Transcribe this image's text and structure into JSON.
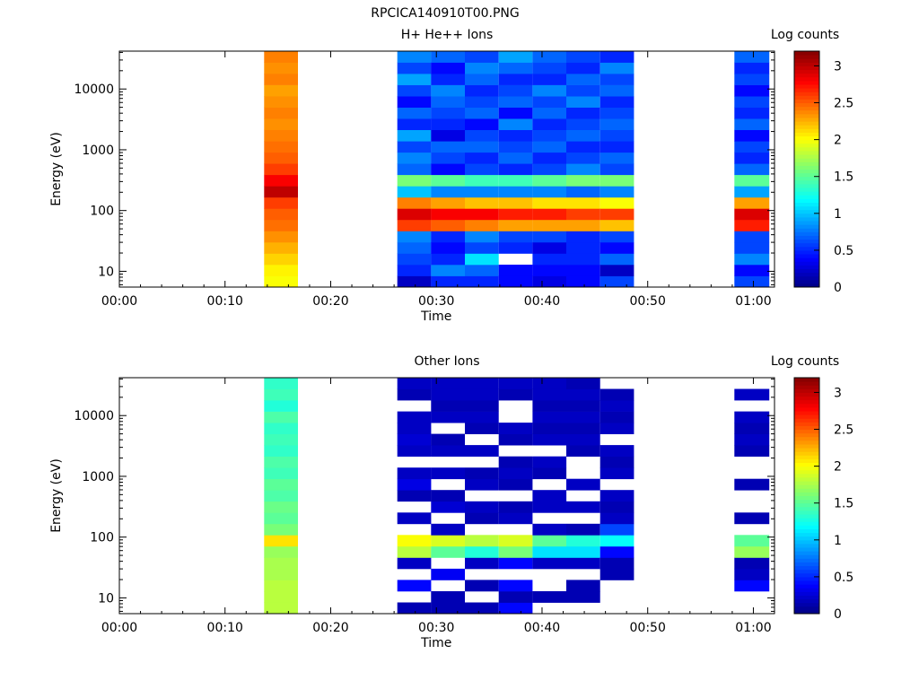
{
  "figure": {
    "title": "RPCICA140910T00.PNG"
  },
  "chart_data": [
    {
      "type": "heatmap",
      "title": "H+ He++ Ions",
      "xlabel": "Time",
      "ylabel": "Energy (eV)",
      "x_ticks": [
        "00:00",
        "00:10",
        "00:20",
        "00:30",
        "00:40",
        "00:50",
        "01:00"
      ],
      "x_range_min": [
        0,
        62
      ],
      "y_ticks": [
        10,
        100,
        1000,
        10000
      ],
      "y_range_ev": [
        5.5,
        42000
      ],
      "y_scale": "log",
      "colorbar": {
        "label": "Log counts",
        "range": [
          0,
          3.2
        ],
        "ticks": [
          "0",
          "0.5",
          "1",
          "1.5",
          "2",
          "2.5",
          "3"
        ]
      },
      "columns": [
        {
          "t_min": [
            13.7,
            16.9
          ],
          "values": [
            2.0,
            2.05,
            2.15,
            2.25,
            2.35,
            2.45,
            2.5,
            2.6,
            3.0,
            2.8,
            2.6,
            2.5,
            2.45,
            2.4,
            2.35,
            2.4,
            2.35,
            2.3,
            2.4,
            2.35,
            2.4
          ]
        },
        {
          "t_min": [
            26.3,
            29.5
          ],
          "values": [
            0.2,
            0.5,
            0.6,
            0.7,
            0.8,
            2.6,
            2.9,
            2.4,
            1.0,
            1.6,
            0.7,
            0.8,
            0.6,
            0.9,
            0.5,
            0.7,
            0.4,
            0.6,
            0.9,
            0.6,
            0.8
          ]
        },
        {
          "t_min": [
            29.5,
            32.7
          ],
          "values": [
            0.5,
            0.8,
            0.5,
            0.4,
            0.5,
            2.5,
            2.8,
            2.3,
            0.8,
            1.5,
            0.4,
            0.6,
            0.7,
            0.3,
            0.5,
            0.6,
            0.7,
            0.8,
            0.5,
            0.4,
            0.7
          ]
        },
        {
          "t_min": [
            32.7,
            35.9
          ],
          "values": [
            0.5,
            0.7,
            1.1,
            0.6,
            0.8,
            2.4,
            2.8,
            2.2,
            0.8,
            1.4,
            0.6,
            0.5,
            0.7,
            0.6,
            0.4,
            0.7,
            0.6,
            0.5,
            0.7,
            0.8,
            0.6
          ]
        },
        {
          "t_min": [
            35.9,
            39.1
          ],
          "values": [
            0.4,
            0.4,
            null,
            0.5,
            0.6,
            2.3,
            2.7,
            2.2,
            0.8,
            1.4,
            0.5,
            0.7,
            0.6,
            0.5,
            0.8,
            0.4,
            0.7,
            0.6,
            0.5,
            0.7,
            0.9
          ]
        },
        {
          "t_min": [
            39.1,
            42.3
          ],
          "values": [
            0.3,
            0.4,
            0.5,
            0.3,
            0.6,
            2.3,
            2.7,
            2.1,
            0.8,
            1.5,
            0.6,
            0.5,
            0.7,
            0.6,
            0.5,
            0.7,
            0.6,
            0.8,
            0.5,
            0.6,
            0.7
          ]
        },
        {
          "t_min": [
            42.3,
            45.5
          ],
          "values": [
            0.4,
            0.4,
            0.5,
            0.5,
            0.5,
            2.3,
            2.6,
            2.1,
            0.7,
            1.6,
            0.8,
            0.6,
            0.5,
            0.7,
            0.6,
            0.5,
            0.8,
            0.6,
            0.7,
            0.5,
            0.6
          ]
        },
        {
          "t_min": [
            45.5,
            48.7
          ],
          "values": [
            0.6,
            0.2,
            0.7,
            0.4,
            0.6,
            2.2,
            2.6,
            2.0,
            0.8,
            1.6,
            0.6,
            0.7,
            0.5,
            0.6,
            0.7,
            0.6,
            0.5,
            0.7,
            0.6,
            0.8,
            0.5
          ]
        },
        {
          "t_min": [
            58.2,
            61.5
          ],
          "values": [
            0.6,
            0.4,
            0.8,
            0.6,
            0.6,
            2.7,
            2.9,
            2.3,
            0.9,
            1.5,
            0.7,
            0.5,
            0.6,
            0.4,
            0.7,
            0.5,
            0.6,
            0.4,
            0.6,
            0.5,
            0.7
          ]
        }
      ]
    },
    {
      "type": "heatmap",
      "title": "Other Ions",
      "xlabel": "Time",
      "ylabel": "Energy (eV)",
      "x_ticks": [
        "00:00",
        "00:10",
        "00:20",
        "00:30",
        "00:40",
        "00:50",
        "01:00"
      ],
      "x_range_min": [
        0,
        62
      ],
      "y_ticks": [
        10,
        100,
        1000,
        10000
      ],
      "y_range_ev": [
        5.5,
        42000
      ],
      "y_scale": "log",
      "colorbar": {
        "label": "Log counts",
        "range": [
          0,
          3.2
        ],
        "ticks": [
          "0",
          "0.5",
          "1",
          "1.5",
          "2",
          "2.5",
          "3"
        ]
      },
      "columns": [
        {
          "t_min": [
            13.7,
            16.9
          ],
          "values": [
            1.8,
            1.8,
            1.8,
            1.75,
            1.75,
            1.7,
            2.1,
            1.6,
            1.5,
            1.55,
            1.45,
            1.5,
            1.4,
            1.45,
            1.35,
            1.4,
            1.35,
            1.45,
            1.3,
            1.4,
            1.35
          ]
        },
        {
          "t_min": [
            26.3,
            29.5
          ],
          "values": [
            0.15,
            null,
            0.4,
            null,
            0.2,
            1.8,
            2.0,
            null,
            0.2,
            null,
            0.15,
            0.3,
            0.2,
            null,
            0.2,
            0.25,
            0.2,
            0.2,
            null,
            0.15,
            0.2
          ]
        },
        {
          "t_min": [
            29.5,
            32.7
          ],
          "values": [
            0.15,
            0.15,
            null,
            0.35,
            null,
            1.5,
            1.9,
            0.2,
            null,
            0.25,
            0.15,
            null,
            0.2,
            null,
            0.2,
            0.15,
            null,
            0.2,
            0.15,
            0.2,
            0.2
          ]
        },
        {
          "t_min": [
            32.7,
            35.9
          ],
          "values": [
            0.15,
            null,
            0.15,
            null,
            0.2,
            1.3,
            1.8,
            null,
            0.15,
            0.2,
            null,
            0.2,
            0.15,
            null,
            0.2,
            null,
            0.15,
            0.2,
            0.15,
            0.2,
            0.2
          ]
        },
        {
          "t_min": [
            35.9,
            39.1
          ],
          "values": [
            0.4,
            0.15,
            0.4,
            null,
            0.4,
            1.6,
            1.9,
            null,
            0.2,
            0.15,
            null,
            0.15,
            0.2,
            0.15,
            null,
            0.15,
            0.2,
            null,
            null,
            0.15,
            0.2
          ]
        },
        {
          "t_min": [
            39.1,
            42.3
          ],
          "values": [
            null,
            0.15,
            null,
            null,
            0.2,
            1.1,
            1.5,
            0.2,
            null,
            0.2,
            0.2,
            null,
            0.15,
            0.2,
            null,
            0.2,
            0.15,
            0.2,
            0.15,
            0.2,
            0.2
          ]
        },
        {
          "t_min": [
            42.3,
            45.5
          ],
          "values": [
            null,
            0.15,
            0.15,
            null,
            0.2,
            1.1,
            1.3,
            0.15,
            null,
            0.2,
            null,
            0.2,
            null,
            null,
            0.15,
            0.2,
            0.15,
            0.2,
            0.15,
            0.2,
            0.15
          ]
        },
        {
          "t_min": [
            45.5,
            48.7
          ],
          "values": [
            null,
            null,
            null,
            0.15,
            0.15,
            0.4,
            1.2,
            0.6,
            0.2,
            0.15,
            0.2,
            null,
            0.2,
            0.15,
            0.2,
            null,
            0.2,
            0.15,
            0.2,
            0.15,
            null
          ]
        },
        {
          "t_min": [
            58.2,
            61.5
          ],
          "values": [
            null,
            null,
            0.4,
            0.2,
            0.15,
            1.7,
            1.5,
            null,
            0.15,
            null,
            null,
            0.15,
            null,
            null,
            0.15,
            0.2,
            0.15,
            0.2,
            null,
            0.2,
            null
          ]
        }
      ]
    }
  ]
}
